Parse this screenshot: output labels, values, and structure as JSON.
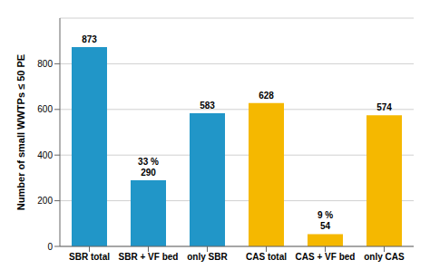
{
  "chart_data": {
    "type": "bar",
    "categories": [
      "SBR total",
      "SBR + VF bed",
      "only SBR",
      "CAS total",
      "CAS + VF bed",
      "only CAS"
    ],
    "values": [
      873,
      290,
      583,
      628,
      54,
      574
    ],
    "colors": [
      "#2196c8",
      "#2196c8",
      "#2196c8",
      "#f5b800",
      "#f5b800",
      "#f5b800"
    ],
    "ylabel": "Number of small WWTPs ≤ 50 PE",
    "ylim": [
      0,
      1000
    ],
    "yticks": [
      0,
      200,
      400,
      600,
      800
    ],
    "grid": true,
    "data_labels": true,
    "annotations": [
      {
        "category": "SBR + VF bed",
        "text": "33 %"
      },
      {
        "category": "CAS + VF bed",
        "text": "9 %"
      }
    ]
  }
}
